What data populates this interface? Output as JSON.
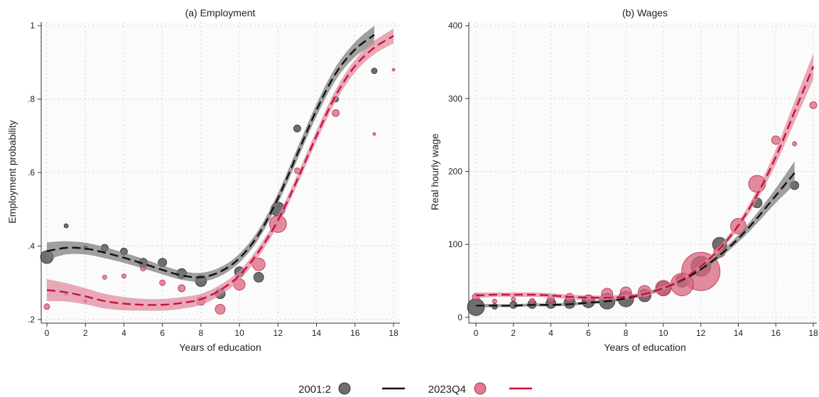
{
  "legend": {
    "series1_label": "2001:2",
    "series2_label": "2023Q4"
  },
  "colors": {
    "series1": "#555555",
    "series1_line": "#111111",
    "series2": "#d9647f",
    "series2_line": "#c8103c"
  },
  "chart_data": [
    {
      "type": "scatter",
      "title": "(a) Employment",
      "xlabel": "Years of education",
      "ylabel": "Employment probability",
      "xlim": [
        0,
        18
      ],
      "ylim": [
        0.19,
        1.01
      ],
      "xticks": [
        0,
        2,
        4,
        6,
        8,
        10,
        12,
        14,
        16,
        18
      ],
      "xtick_labels": [
        "0",
        "2",
        "4",
        "6",
        "8",
        "10",
        "12",
        "14",
        "16",
        "18"
      ],
      "yticks": [
        0.2,
        0.4,
        0.6,
        0.8,
        1.0
      ],
      "ytick_labels": [
        ".2",
        ".4",
        ".6",
        ".8",
        "1"
      ],
      "grid": true,
      "series": [
        {
          "name": "2001:2",
          "x": [
            0,
            1,
            2,
            3,
            4,
            5,
            6,
            7,
            8,
            9,
            10,
            11,
            12,
            13,
            15,
            17
          ],
          "y": [
            0.37,
            0.455,
            0.395,
            0.395,
            0.385,
            0.355,
            0.355,
            0.325,
            0.305,
            0.27,
            0.33,
            0.315,
            0.5,
            0.72,
            0.8,
            0.877
          ],
          "weight": [
            9,
            3,
            3,
            5,
            5,
            6,
            6,
            7,
            8,
            7,
            7,
            7,
            10,
            5,
            4,
            4
          ],
          "fit_x": [
            0,
            1,
            2,
            3,
            4,
            5,
            6,
            7,
            8,
            9,
            10,
            11,
            12,
            13,
            14,
            15,
            16,
            17
          ],
          "fit_y": [
            0.386,
            0.395,
            0.393,
            0.382,
            0.368,
            0.352,
            0.335,
            0.32,
            0.315,
            0.33,
            0.367,
            0.432,
            0.53,
            0.65,
            0.77,
            0.87,
            0.935,
            0.975
          ],
          "fit_band": [
            0.024,
            0.018,
            0.016,
            0.015,
            0.014,
            0.013,
            0.012,
            0.012,
            0.012,
            0.012,
            0.012,
            0.013,
            0.014,
            0.016,
            0.017,
            0.018,
            0.02,
            0.025
          ]
        },
        {
          "name": "2023Q4",
          "x": [
            0,
            1,
            2,
            3,
            4,
            5,
            6,
            7,
            8,
            9,
            10,
            11,
            12,
            13,
            15,
            17,
            18
          ],
          "y": [
            0.235,
            0.27,
            0.25,
            0.315,
            0.318,
            0.34,
            0.3,
            0.285,
            0.25,
            0.228,
            0.295,
            0.35,
            0.46,
            0.605,
            0.762,
            0.705,
            0.88
          ],
          "weight": [
            4,
            2,
            2,
            3,
            3,
            4,
            4,
            5,
            6,
            7,
            8,
            9,
            12,
            4,
            5,
            2,
            2
          ],
          "fit_x": [
            0,
            1,
            2,
            3,
            4,
            5,
            6,
            7,
            8,
            9,
            10,
            11,
            12,
            13,
            14,
            15,
            16,
            17,
            18
          ],
          "fit_y": [
            0.28,
            0.274,
            0.263,
            0.25,
            0.243,
            0.24,
            0.24,
            0.245,
            0.255,
            0.28,
            0.32,
            0.385,
            0.47,
            0.58,
            0.7,
            0.81,
            0.89,
            0.94,
            0.972
          ],
          "fit_band": [
            0.03,
            0.025,
            0.022,
            0.02,
            0.018,
            0.016,
            0.016,
            0.016,
            0.015,
            0.014,
            0.013,
            0.013,
            0.013,
            0.014,
            0.015,
            0.016,
            0.017,
            0.018,
            0.02
          ]
        }
      ]
    },
    {
      "type": "scatter",
      "title": "(b) Wages",
      "xlabel": "Years of education",
      "ylabel": "Real hourly wage",
      "xlim": [
        0,
        18
      ],
      "ylim": [
        -8,
        405
      ],
      "xticks": [
        0,
        2,
        4,
        6,
        8,
        10,
        12,
        14,
        16,
        18
      ],
      "xtick_labels": [
        "0",
        "2",
        "4",
        "6",
        "8",
        "10",
        "12",
        "14",
        "16",
        "18"
      ],
      "yticks": [
        0,
        100,
        200,
        300,
        400
      ],
      "ytick_labels": [
        "0",
        "100",
        "200",
        "300",
        "400"
      ],
      "grid": true,
      "series": [
        {
          "name": "2001:2",
          "x": [
            0,
            1,
            2,
            3,
            4,
            5,
            6,
            7,
            8,
            9,
            10,
            11,
            12,
            13,
            15,
            17
          ],
          "y": [
            14,
            15,
            17,
            18,
            19,
            20,
            22,
            22,
            25,
            30,
            40,
            50,
            70,
            100,
            157,
            181
          ],
          "weight": [
            12,
            4,
            5,
            6,
            7,
            8,
            9,
            11,
            11,
            9,
            10,
            9,
            14,
            10,
            7,
            6
          ],
          "fit_x": [
            0,
            1,
            2,
            3,
            4,
            5,
            6,
            7,
            8,
            9,
            10,
            11,
            12,
            13,
            14,
            15,
            16,
            17
          ],
          "fit_y": [
            16,
            16,
            16,
            17,
            17,
            18,
            20,
            22,
            26,
            32,
            40,
            51,
            66,
            85,
            108,
            136,
            167,
            198
          ],
          "fit_band": [
            3,
            2,
            2,
            2,
            2,
            2,
            2,
            2,
            2,
            2,
            2,
            3,
            3,
            4,
            5,
            7,
            10,
            16
          ]
        },
        {
          "name": "2023Q4",
          "x": [
            0,
            1,
            2,
            3,
            4,
            5,
            6,
            7,
            8,
            9,
            10,
            11,
            12,
            13,
            14,
            15,
            16,
            17,
            18
          ],
          "y": [
            28,
            22,
            25,
            22,
            25,
            27,
            25,
            32,
            34,
            35,
            40,
            45,
            63,
            90,
            125,
            183,
            243,
            238,
            291
          ],
          "weight": [
            5,
            3,
            3,
            4,
            5,
            6,
            6,
            8,
            8,
            9,
            11,
            16,
            27,
            8,
            11,
            12,
            6,
            3,
            5
          ],
          "fit_x": [
            0,
            1,
            2,
            3,
            4,
            5,
            6,
            7,
            8,
            9,
            10,
            11,
            12,
            13,
            14,
            15,
            16,
            17,
            18
          ],
          "fit_y": [
            30,
            31,
            31,
            31,
            30,
            28,
            27,
            27,
            28,
            32,
            40,
            52,
            70,
            94,
            126,
            168,
            220,
            282,
            344
          ],
          "fit_band": [
            4,
            3,
            3,
            3,
            3,
            3,
            3,
            3,
            3,
            3,
            3,
            3,
            3,
            4,
            5,
            7,
            10,
            14,
            18
          ]
        }
      ]
    }
  ]
}
